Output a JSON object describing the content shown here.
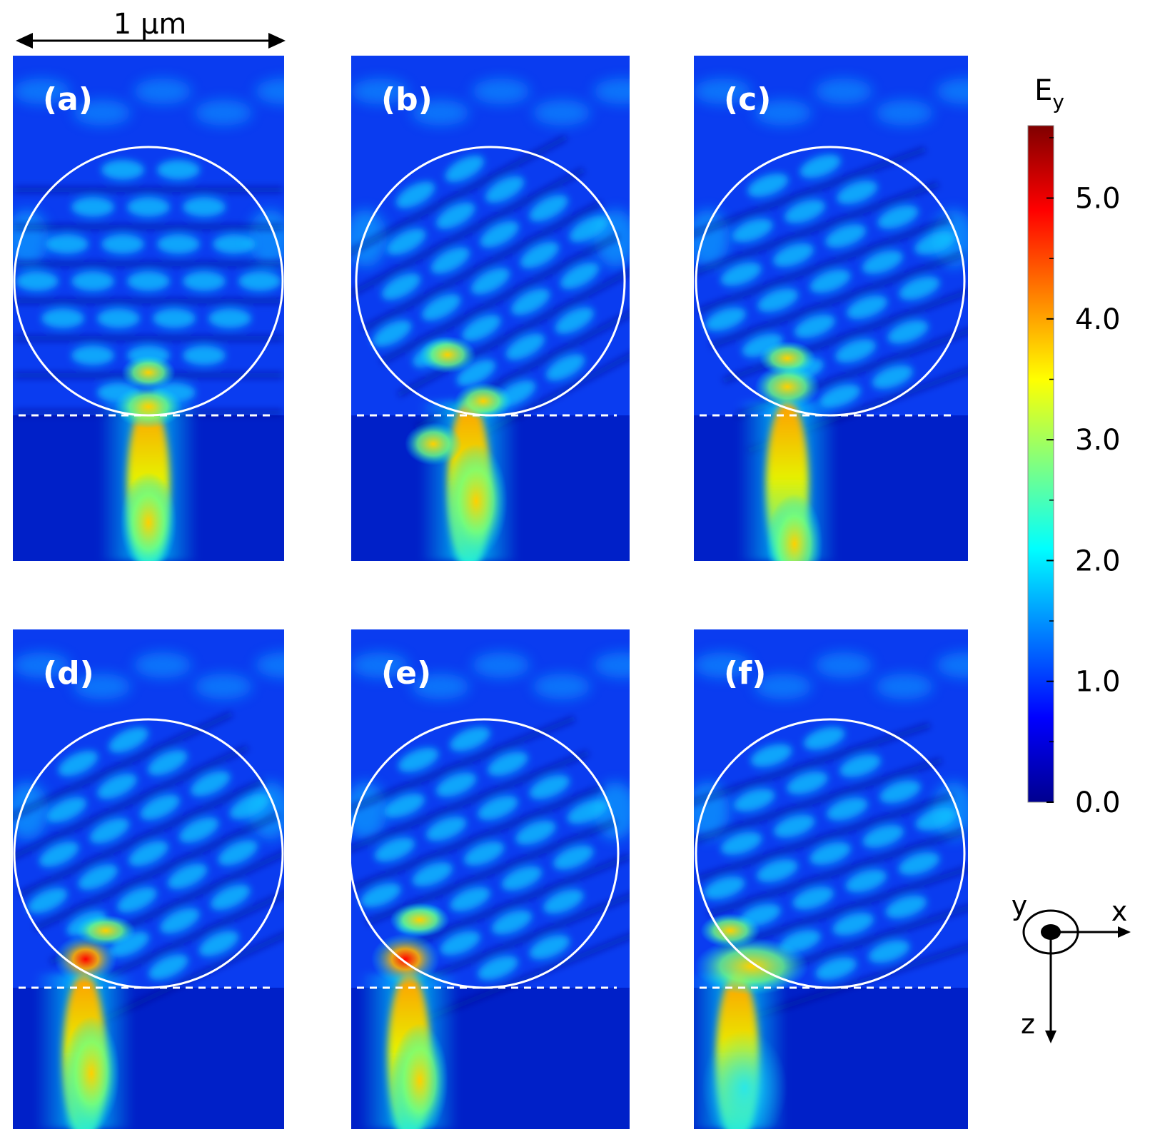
{
  "scale_bar": {
    "label": "1 μm"
  },
  "panels": [
    {
      "label": "(a)"
    },
    {
      "label": "(b)"
    },
    {
      "label": "(c)"
    },
    {
      "label": "(d)"
    },
    {
      "label": "(e)"
    },
    {
      "label": "(f)"
    }
  ],
  "colorbar": {
    "title": "E",
    "title_subscript": "y",
    "ticks": [
      "0.0",
      "1.0",
      "2.0",
      "3.0",
      "4.0",
      "5.0"
    ],
    "range": [
      0.0,
      5.6
    ],
    "colors": [
      "#00008f",
      "#0000ff",
      "#0080ff",
      "#00ffff",
      "#80ff80",
      "#ffff00",
      "#ff8000",
      "#ff0000",
      "#800000"
    ]
  },
  "axes": {
    "out_of_plane": "y",
    "horizontal": "x",
    "vertical": "z"
  }
}
